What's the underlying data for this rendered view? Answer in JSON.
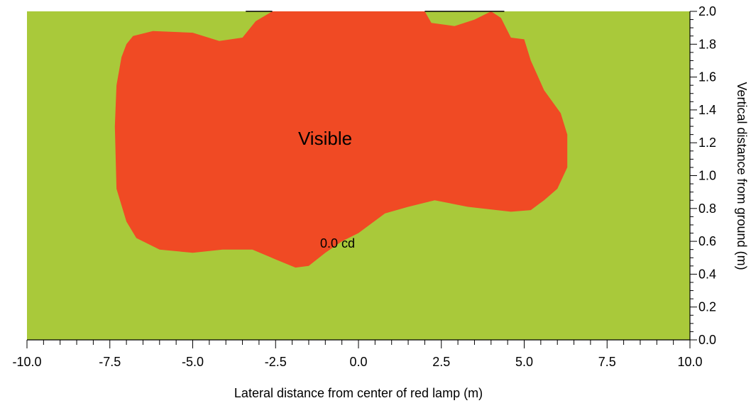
{
  "chart_data": {
    "type": "area",
    "xlabel": "Lateral distance from center of red lamp (m)",
    "ylabel": "Vertical distance from ground (m)",
    "xlim": [
      -10.0,
      10.0
    ],
    "ylim": [
      0.0,
      2.0
    ],
    "x_ticks": [
      "-10.0",
      "-7.5",
      "-5.0",
      "-2.5",
      "0.0",
      "2.5",
      "5.0",
      "7.5",
      "10.0"
    ],
    "y_ticks": [
      "0.0",
      "0.2",
      "0.4",
      "0.6",
      "0.8",
      "1.0",
      "1.2",
      "1.4",
      "1.6",
      "1.8",
      "2.0"
    ],
    "grid": false,
    "colors": {
      "background_region": "#a9c93a",
      "visible_region": "#f04a24",
      "axis": "#000000"
    },
    "region_label": "Visible",
    "contour_label": "0.0 cd",
    "visible_region_boundary": [
      [
        -7.0,
        1.8
      ],
      [
        -6.8,
        1.85
      ],
      [
        -6.2,
        1.88
      ],
      [
        -5.0,
        1.87
      ],
      [
        -4.2,
        1.82
      ],
      [
        -3.5,
        1.84
      ],
      [
        -3.1,
        1.94
      ],
      [
        -2.6,
        2.0
      ],
      [
        2.0,
        2.0
      ],
      [
        2.2,
        1.93
      ],
      [
        2.9,
        1.91
      ],
      [
        3.5,
        1.95
      ],
      [
        4.0,
        2.0
      ],
      [
        4.3,
        1.96
      ],
      [
        4.6,
        1.84
      ],
      [
        5.0,
        1.83
      ],
      [
        5.2,
        1.7
      ],
      [
        5.6,
        1.52
      ],
      [
        6.1,
        1.38
      ],
      [
        6.3,
        1.25
      ],
      [
        6.3,
        1.05
      ],
      [
        6.0,
        0.92
      ],
      [
        5.6,
        0.85
      ],
      [
        5.2,
        0.79
      ],
      [
        4.6,
        0.78
      ],
      [
        3.3,
        0.81
      ],
      [
        2.3,
        0.85
      ],
      [
        1.5,
        0.81
      ],
      [
        0.8,
        0.77
      ],
      [
        0.0,
        0.65
      ],
      [
        -0.5,
        0.6
      ],
      [
        -1.0,
        0.53
      ],
      [
        -1.5,
        0.45
      ],
      [
        -1.9,
        0.44
      ],
      [
        -2.5,
        0.49
      ],
      [
        -3.2,
        0.55
      ],
      [
        -4.1,
        0.55
      ],
      [
        -5.0,
        0.53
      ],
      [
        -6.0,
        0.55
      ],
      [
        -6.7,
        0.62
      ],
      [
        -7.0,
        0.72
      ],
      [
        -7.3,
        0.92
      ],
      [
        -7.35,
        1.3
      ],
      [
        -7.3,
        1.55
      ],
      [
        -7.15,
        1.72
      ]
    ]
  }
}
